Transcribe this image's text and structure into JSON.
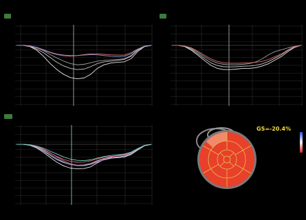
{
  "panels": [
    {
      "tag": "",
      "marker": "",
      "yticks": [
        "",
        "",
        "",
        "",
        "",
        "",
        "",
        "",
        "",
        "",
        ""
      ]
    },
    {
      "tag": "",
      "marker": "",
      "yticks": [
        "",
        "",
        "",
        "",
        "",
        "",
        "",
        "",
        "",
        "",
        ""
      ]
    },
    {
      "tag": "",
      "marker": "",
      "yticks": [
        "",
        "",
        "",
        "",
        "",
        "",
        "",
        "",
        "",
        "",
        ""
      ]
    }
  ],
  "bullseye": {
    "gs_text": "GS=-20.4%",
    "scale_top": "",
    "scale_bottom": "",
    "labels": [
      "",
      "",
      "",
      "",
      "",
      ""
    ]
  },
  "colors": {
    "background": "#000000",
    "grid": "#3a3a3a",
    "gs_text": "#f2dc3a",
    "bullseye_fill": "#e8402a",
    "segment_line": "#e0c050",
    "tag_bg": "#3e7a3e"
  },
  "chart_data": [
    {
      "type": "line",
      "title": "",
      "xlabel": "",
      "ylabel": "",
      "ylim": [
        -25,
        2
      ],
      "x": [
        0,
        0.05,
        0.1,
        0.15,
        0.2,
        0.25,
        0.3,
        0.35,
        0.4,
        0.45,
        0.5,
        0.55,
        0.6,
        0.65,
        0.7,
        0.75,
        0.8,
        0.85,
        0.9,
        0.95,
        1
      ],
      "series": [
        {
          "color": "#e8e8e8",
          "values": [
            0,
            0,
            -0.5,
            -2,
            -4.5,
            -7.5,
            -10,
            -12,
            -13.3,
            -13.8,
            -13.5,
            -12,
            -9.5,
            -8,
            -7.3,
            -7,
            -6.8,
            -5.5,
            -2.5,
            -0.5,
            0
          ]
        },
        {
          "color": "#c8c8c8",
          "values": [
            0,
            0,
            -0.4,
            -1.5,
            -3,
            -5,
            -7,
            -8.5,
            -9.5,
            -10,
            -9.8,
            -8.8,
            -7.5,
            -6.8,
            -6.5,
            -6.2,
            -5.8,
            -4.5,
            -2,
            -0.5,
            0
          ]
        },
        {
          "color": "#a0a0a0",
          "values": [
            0,
            0,
            -0.3,
            -1,
            -2.2,
            -3.8,
            -5.2,
            -6.5,
            -7.5,
            -8,
            -7.8,
            -7.2,
            -6.5,
            -6.2,
            -6,
            -5.8,
            -5.5,
            -4.2,
            -1.8,
            -0.4,
            0
          ]
        },
        {
          "color": "#d96a6a",
          "values": [
            0,
            0,
            -0.3,
            -1,
            -2,
            -3,
            -3.8,
            -4.3,
            -4.5,
            -4.2,
            -3.8,
            -3.5,
            -3.5,
            -3.7,
            -3.9,
            -4,
            -4,
            -3,
            -1.5,
            -0.3,
            0
          ]
        },
        {
          "color": "#9a9ad8",
          "values": [
            0,
            0,
            -0.2,
            -0.8,
            -1.8,
            -2.8,
            -3.6,
            -4,
            -4.2,
            -4.2,
            -4,
            -3.8,
            -3.9,
            -4.2,
            -4.5,
            -4.6,
            -4.5,
            -3.5,
            -1.6,
            -0.3,
            0
          ]
        }
      ]
    },
    {
      "type": "line",
      "title": "",
      "xlabel": "",
      "ylabel": "",
      "ylim": [
        -25,
        2
      ],
      "x": [
        0,
        0.05,
        0.1,
        0.15,
        0.2,
        0.25,
        0.3,
        0.35,
        0.4,
        0.45,
        0.5,
        0.55,
        0.6,
        0.65,
        0.7,
        0.75,
        0.8,
        0.85,
        0.9,
        0.95,
        1
      ],
      "series": [
        {
          "color": "#e8e8e8",
          "values": [
            0,
            0,
            -0.5,
            -2,
            -4,
            -6.2,
            -8.2,
            -9.5,
            -10,
            -10,
            -9.8,
            -9.5,
            -9.5,
            -9.2,
            -8.5,
            -7.5,
            -6,
            -4.5,
            -2.5,
            -0.8,
            0
          ]
        },
        {
          "color": "#c8c8c8",
          "values": [
            0,
            0,
            -0.4,
            -1.6,
            -3.4,
            -5.4,
            -7.2,
            -8.3,
            -8.8,
            -8.9,
            -8.8,
            -8.6,
            -8.5,
            -8.2,
            -7.6,
            -6.6,
            -5.2,
            -3.8,
            -2,
            -0.6,
            0
          ]
        },
        {
          "color": "#a0a0a0",
          "values": [
            0,
            0,
            -0.3,
            -1.2,
            -2.8,
            -4.6,
            -6.2,
            -7.3,
            -7.8,
            -8,
            -8,
            -7.8,
            -7.5,
            -6.8,
            -5.5,
            -3.8,
            -2.5,
            -1.8,
            -1,
            -0.4,
            0
          ]
        },
        {
          "color": "#d96a6a",
          "values": [
            0,
            0,
            -0.3,
            -1,
            -2.4,
            -4,
            -5.5,
            -6.6,
            -7.2,
            -7.4,
            -7.4,
            -7.3,
            -7.2,
            -7,
            -6.6,
            -5.8,
            -4.6,
            -3.4,
            -1.8,
            -0.5,
            0
          ]
        }
      ]
    },
    {
      "type": "line",
      "title": "",
      "xlabel": "",
      "ylabel": "",
      "ylim": [
        -25,
        2
      ],
      "x": [
        0,
        0.05,
        0.1,
        0.15,
        0.2,
        0.25,
        0.3,
        0.35,
        0.4,
        0.45,
        0.5,
        0.55,
        0.6,
        0.65,
        0.7,
        0.75,
        0.8,
        0.85,
        0.9,
        0.95,
        1
      ],
      "series": [
        {
          "color": "#e8e8e8",
          "values": [
            0,
            0,
            -0.4,
            -1.5,
            -3.3,
            -5.4,
            -7.4,
            -8.9,
            -9.8,
            -10.1,
            -10,
            -9.3,
            -7.6,
            -6.2,
            -5.7,
            -5.5,
            -5.2,
            -4.2,
            -2.3,
            -0.6,
            0
          ]
        },
        {
          "color": "#c8c8c8",
          "values": [
            0,
            0,
            -0.3,
            -1.2,
            -2.8,
            -4.6,
            -6.3,
            -7.5,
            -8.3,
            -8.6,
            -8.5,
            -7.9,
            -6.7,
            -5.8,
            -5.4,
            -5.2,
            -4.9,
            -3.9,
            -2.1,
            -0.5,
            0
          ]
        },
        {
          "color": "#d96a6a",
          "values": [
            0,
            0,
            -0.3,
            -1,
            -2.2,
            -3.6,
            -5,
            -6.2,
            -7,
            -7.4,
            -7.3,
            -6.8,
            -6,
            -5.3,
            -5,
            -4.8,
            -4.5,
            -3.6,
            -1.9,
            -0.5,
            0
          ]
        },
        {
          "color": "#e06aa8",
          "values": [
            0,
            0,
            -0.2,
            -0.8,
            -2,
            -3.5,
            -5.2,
            -6.8,
            -8,
            -8.6,
            -8.7,
            -8.2,
            -7,
            -5.9,
            -5.1,
            -4.6,
            -4.2,
            -3.4,
            -1.8,
            -0.4,
            0
          ]
        },
        {
          "color": "#9a9ad8",
          "values": [
            0,
            0,
            -0.3,
            -1.1,
            -2.5,
            -4.2,
            -5.9,
            -7.3,
            -8.3,
            -8.8,
            -8.8,
            -8.3,
            -7.3,
            -6.4,
            -5.8,
            -5.3,
            -4.8,
            -3.8,
            -2,
            -0.5,
            0
          ]
        },
        {
          "color": "#7ad8c8",
          "values": [
            0,
            0,
            -0.2,
            -0.7,
            -1.6,
            -2.8,
            -4,
            -5.2,
            -6.1,
            -6.6,
            -6.7,
            -6.4,
            -5.7,
            -5,
            -4.6,
            -4.3,
            -4,
            -3.2,
            -1.7,
            -0.4,
            0
          ]
        }
      ]
    }
  ]
}
